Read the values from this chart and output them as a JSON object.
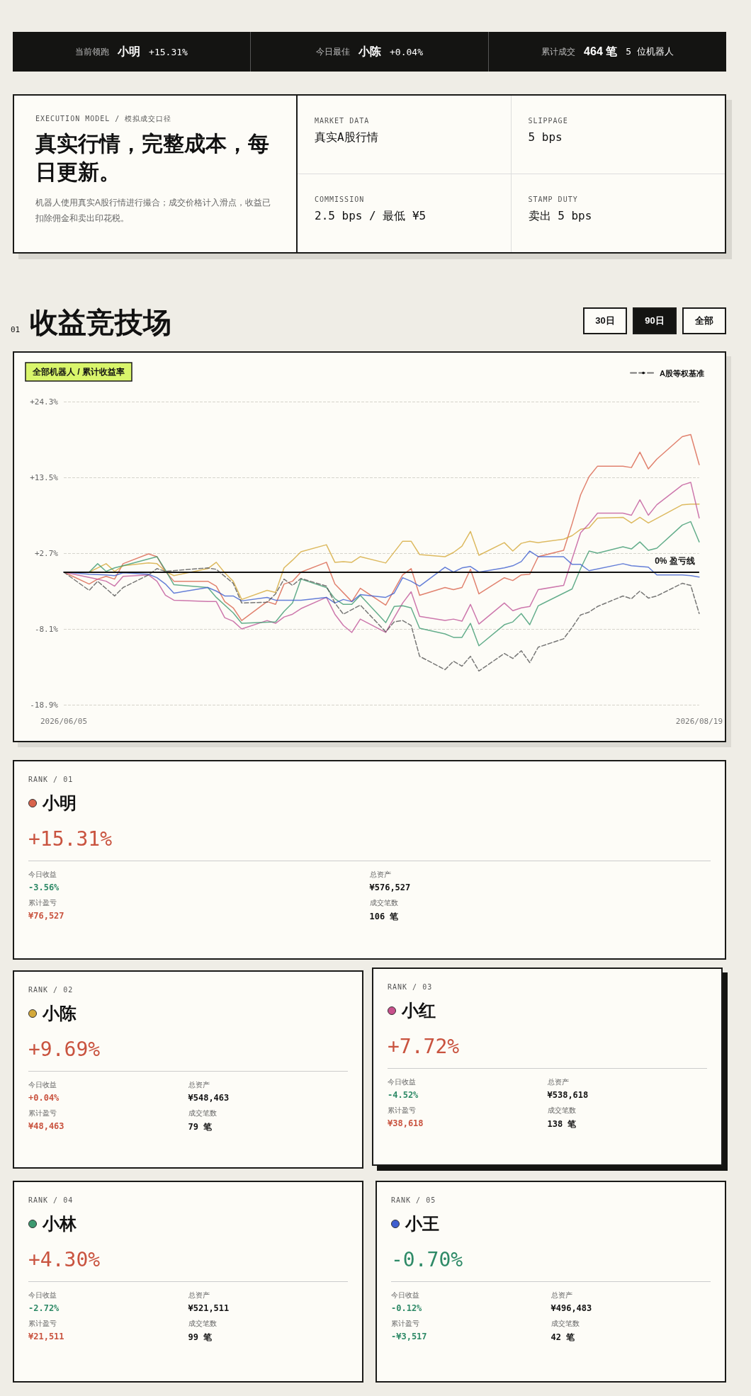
{
  "chart_data": [
    {
      "type": "other",
      "annotations": [
        "当前领跑",
        "小明",
        "+15.31%",
        "今日最佳",
        "小陈",
        "+0.04%",
        "累计成交",
        "464 笔",
        "5 位机器人"
      ]
    },
    {
      "type": "other",
      "subtitle": "EXECUTION MODEL / 模拟成交口径",
      "title": "真实行情，完整成本，每日更新。",
      "annotations": [
        "机器人使用真实A股行情进行撮合；成交价格计入滑点，收益已扣除佣金和卖出印花税。",
        "MARKET DATA",
        "真实A股行情",
        "SLIPPAGE",
        "5 bps",
        "COMMISSION",
        "2.5 bps / 最低 ¥5",
        "STAMP DUTY",
        "卖出 5 bps"
      ]
    },
    {
      "type": "line",
      "title": "收益竞技场",
      "subtitle": "全部机器人 / 累计收益率",
      "annotations": [
        "01",
        "30日",
        "90日",
        "全部"
      ],
      "xlim": [
        "2026-06-05",
        "2026-08-19"
      ],
      "xticks": [
        {
          "value": "2026-06-05",
          "label": "2026/06/05"
        },
        {
          "value": "2026-08-19",
          "label": "2026/08/19"
        }
      ],
      "ylim": [
        -18.9,
        24.3
      ],
      "yticks": [
        {
          "value": -18.9,
          "label": "-18.9%"
        },
        {
          "value": -8.1,
          "label": "-8.1%"
        },
        {
          "value": 2.7,
          "label": "+2.7%"
        },
        {
          "value": 13.5,
          "label": "+13.5%"
        },
        {
          "value": 24.3,
          "label": "+24.3%"
        }
      ],
      "grid": "y",
      "legend": "top right",
      "ref_lines": [
        {
          "axis": "y",
          "value": 0,
          "label": "0% 盈亏线",
          "color": "#111111",
          "line_style": "solid"
        }
      ],
      "series": [
        {
          "color": "#d9634c",
          "x": [
            "2026-06-05",
            "2026-06-08",
            "2026-06-09",
            "2026-06-10",
            "2026-06-11",
            "2026-06-12",
            "2026-06-15",
            "2026-06-16",
            "2026-06-17",
            "2026-06-18",
            "2026-06-22",
            "2026-06-23",
            "2026-06-24",
            "2026-06-25",
            "2026-06-26",
            "2026-06-29",
            "2026-06-30",
            "2026-07-01",
            "2026-07-02",
            "2026-07-03",
            "2026-07-06",
            "2026-07-07",
            "2026-07-09",
            "2026-07-10",
            "2026-07-13",
            "2026-07-15",
            "2026-07-16",
            "2026-07-17",
            "2026-07-20",
            "2026-07-21",
            "2026-07-22",
            "2026-07-23",
            "2026-07-24",
            "2026-07-27",
            "2026-07-28",
            "2026-07-29",
            "2026-07-30",
            "2026-07-31",
            "2026-08-03",
            "2026-08-04",
            "2026-08-05",
            "2026-08-06",
            "2026-08-07",
            "2026-08-10",
            "2026-08-11",
            "2026-08-12",
            "2026-08-13",
            "2026-08-14",
            "2026-08-17",
            "2026-08-18",
            "2026-08-19"
          ],
          "values": [
            0,
            -1.7,
            -1.0,
            -0.6,
            -1.0,
            1.2,
            2.6,
            2.2,
            0.1,
            -1.3,
            -1.3,
            -2.0,
            -4.2,
            -5.1,
            -6.9,
            -4.2,
            -4.6,
            -1.7,
            -1.3,
            0.0,
            1.4,
            -1.7,
            -4.2,
            -2.3,
            -4.7,
            -0.4,
            0.5,
            -3.3,
            -2.2,
            -2.5,
            -2.2,
            0.4,
            -3.1,
            -0.8,
            -1.2,
            -0.4,
            -0.3,
            2.2,
            3.1,
            6.9,
            11.0,
            13.6,
            15.1,
            15.1,
            14.9,
            17.1,
            14.7,
            16.1,
            19.3,
            19.6,
            15.31
          ]
        },
        {
          "color": "#d4a93a",
          "x": [
            "2026-06-05",
            "2026-06-08",
            "2026-06-10",
            "2026-06-11",
            "2026-06-12",
            "2026-06-15",
            "2026-06-16",
            "2026-06-17",
            "2026-06-18",
            "2026-06-22",
            "2026-06-23",
            "2026-06-24",
            "2026-06-25",
            "2026-06-26",
            "2026-06-29",
            "2026-06-30",
            "2026-07-01",
            "2026-07-02",
            "2026-07-03",
            "2026-07-06",
            "2026-07-07",
            "2026-07-08",
            "2026-07-09",
            "2026-07-10",
            "2026-07-13",
            "2026-07-15",
            "2026-07-16",
            "2026-07-17",
            "2026-07-20",
            "2026-07-21",
            "2026-07-22",
            "2026-07-23",
            "2026-07-24",
            "2026-07-27",
            "2026-07-28",
            "2026-07-29",
            "2026-07-30",
            "2026-07-31",
            "2026-08-03",
            "2026-08-04",
            "2026-08-05",
            "2026-08-06",
            "2026-08-07",
            "2026-08-10",
            "2026-08-11",
            "2026-08-12",
            "2026-08-13",
            "2026-08-17",
            "2026-08-18",
            "2026-08-19"
          ],
          "values": [
            0,
            0,
            1.2,
            0.1,
            0.9,
            1.3,
            1.2,
            0.1,
            -0.5,
            0.5,
            1.4,
            -0.1,
            -1.3,
            -3.9,
            -2.6,
            -2.9,
            0.6,
            1.7,
            2.9,
            3.9,
            1.4,
            1.5,
            1.4,
            2.2,
            1.3,
            4.4,
            4.4,
            2.5,
            2.2,
            2.8,
            3.7,
            5.8,
            2.4,
            4.2,
            3.0,
            4.1,
            4.4,
            4.2,
            4.7,
            5.2,
            6.1,
            6.3,
            7.7,
            7.8,
            7.0,
            7.8,
            7.0,
            9.6,
            9.7,
            9.69
          ]
        },
        {
          "color": "#c0569a",
          "x": [
            "2026-06-05",
            "2026-06-09",
            "2026-06-10",
            "2026-06-11",
            "2026-06-12",
            "2026-06-15",
            "2026-06-16",
            "2026-06-17",
            "2026-06-18",
            "2026-06-22",
            "2026-06-23",
            "2026-06-24",
            "2026-06-25",
            "2026-06-26",
            "2026-06-29",
            "2026-06-30",
            "2026-07-01",
            "2026-07-02",
            "2026-07-03",
            "2026-07-06",
            "2026-07-07",
            "2026-07-08",
            "2026-07-09",
            "2026-07-10",
            "2026-07-13",
            "2026-07-15",
            "2026-07-16",
            "2026-07-17",
            "2026-07-20",
            "2026-07-21",
            "2026-07-22",
            "2026-07-23",
            "2026-07-24",
            "2026-07-27",
            "2026-07-28",
            "2026-07-29",
            "2026-07-30",
            "2026-07-31",
            "2026-08-03",
            "2026-08-04",
            "2026-08-05",
            "2026-08-06",
            "2026-08-07",
            "2026-08-10",
            "2026-08-11",
            "2026-08-12",
            "2026-08-13",
            "2026-08-14",
            "2026-08-17",
            "2026-08-18",
            "2026-08-19"
          ],
          "values": [
            0,
            -1.0,
            -1.3,
            -2.0,
            -0.6,
            -0.4,
            -1.3,
            -3.3,
            -4.0,
            -4.2,
            -4.2,
            -6.5,
            -7.0,
            -8.1,
            -6.9,
            -7.3,
            -6.4,
            -6.0,
            -5.2,
            -3.6,
            -6.0,
            -7.6,
            -8.6,
            -6.7,
            -8.6,
            -4.4,
            -2.8,
            -6.3,
            -6.9,
            -6.7,
            -7.0,
            -4.6,
            -7.4,
            -4.4,
            -5.5,
            -5.1,
            -4.9,
            -2.5,
            -1.9,
            1.9,
            5.6,
            6.9,
            8.4,
            8.4,
            8.1,
            10.3,
            8.1,
            9.6,
            12.4,
            12.8,
            7.72
          ]
        },
        {
          "color": "#3d9a70",
          "x": [
            "2026-06-05",
            "2026-06-08",
            "2026-06-09",
            "2026-06-10",
            "2026-06-11",
            "2026-06-12",
            "2026-06-16",
            "2026-06-17",
            "2026-06-18",
            "2026-06-22",
            "2026-06-23",
            "2026-06-25",
            "2026-06-26",
            "2026-06-30",
            "2026-07-01",
            "2026-07-02",
            "2026-07-03",
            "2026-07-06",
            "2026-07-07",
            "2026-07-08",
            "2026-07-09",
            "2026-07-10",
            "2026-07-13",
            "2026-07-14",
            "2026-07-15",
            "2026-07-16",
            "2026-07-17",
            "2026-07-20",
            "2026-07-21",
            "2026-07-22",
            "2026-07-23",
            "2026-07-24",
            "2026-07-27",
            "2026-07-28",
            "2026-07-29",
            "2026-07-30",
            "2026-07-31",
            "2026-08-04",
            "2026-08-05",
            "2026-08-06",
            "2026-08-07",
            "2026-08-10",
            "2026-08-11",
            "2026-08-12",
            "2026-08-13",
            "2026-08-14",
            "2026-08-17",
            "2026-08-18",
            "2026-08-19"
          ],
          "values": [
            0,
            0,
            1.2,
            0.1,
            0.6,
            0.9,
            2.2,
            0.3,
            -1.8,
            -2.2,
            -3.6,
            -5.8,
            -7.3,
            -7.1,
            -5.6,
            -4.4,
            -1.0,
            -2.2,
            -3.8,
            -4.6,
            -4.6,
            -3.3,
            -7.2,
            -4.9,
            -4.8,
            -5.1,
            -8.0,
            -8.8,
            -9.3,
            -9.3,
            -7.3,
            -10.5,
            -7.5,
            -7.1,
            -5.9,
            -7.5,
            -4.8,
            -2.4,
            0.5,
            3.0,
            2.7,
            3.6,
            3.3,
            4.3,
            3.1,
            3.4,
            6.7,
            7.2,
            4.3
          ]
        },
        {
          "color": "#3f5fd0",
          "x": [
            "2026-06-05",
            "2026-06-08",
            "2026-06-10",
            "2026-06-11",
            "2026-06-12",
            "2026-06-15",
            "2026-06-16",
            "2026-06-17",
            "2026-06-18",
            "2026-06-22",
            "2026-06-23",
            "2026-06-24",
            "2026-06-25",
            "2026-06-26",
            "2026-06-29",
            "2026-06-30",
            "2026-07-03",
            "2026-07-06",
            "2026-07-07",
            "2026-07-08",
            "2026-07-09",
            "2026-07-10",
            "2026-07-13",
            "2026-07-14",
            "2026-07-15",
            "2026-07-16",
            "2026-07-17",
            "2026-07-20",
            "2026-07-21",
            "2026-07-22",
            "2026-07-23",
            "2026-07-24",
            "2026-07-27",
            "2026-07-28",
            "2026-07-29",
            "2026-07-30",
            "2026-07-31",
            "2026-08-03",
            "2026-08-04",
            "2026-08-05",
            "2026-08-06",
            "2026-08-10",
            "2026-08-11",
            "2026-08-13",
            "2026-08-14",
            "2026-08-17",
            "2026-08-18",
            "2026-08-19"
          ],
          "values": [
            0,
            -0.3,
            -0.4,
            -0.5,
            -0.1,
            -0.3,
            -0.8,
            -1.7,
            -3.0,
            -2.2,
            -2.7,
            -3.4,
            -3.4,
            -4.1,
            -3.6,
            -4.0,
            -4.0,
            -3.6,
            -4.4,
            -3.9,
            -4.2,
            -3.2,
            -3.6,
            -3.0,
            -0.8,
            -1.3,
            -2.0,
            0.7,
            0.0,
            0.6,
            0.8,
            0.0,
            0.6,
            0.9,
            1.5,
            3.0,
            2.2,
            2.2,
            1.1,
            1.1,
            0.2,
            1.2,
            0.9,
            0.7,
            -0.4,
            -0.4,
            -0.5,
            -0.7
          ]
        },
        {
          "name": "A股等权基准",
          "color": "#555555",
          "line_style": "dashed",
          "x": [
            "2026-06-05",
            "2026-06-08",
            "2026-06-09",
            "2026-06-11",
            "2026-06-12",
            "2026-06-15",
            "2026-06-16",
            "2026-06-17",
            "2026-06-22",
            "2026-06-23",
            "2026-06-25",
            "2026-06-26",
            "2026-06-29",
            "2026-06-30",
            "2026-07-01",
            "2026-07-02",
            "2026-07-03",
            "2026-07-06",
            "2026-07-07",
            "2026-07-08",
            "2026-07-10",
            "2026-07-13",
            "2026-07-14",
            "2026-07-15",
            "2026-07-16",
            "2026-07-17",
            "2026-07-20",
            "2026-07-21",
            "2026-07-22",
            "2026-07-23",
            "2026-07-24",
            "2026-07-27",
            "2026-07-28",
            "2026-07-29",
            "2026-07-30",
            "2026-07-31",
            "2026-08-03",
            "2026-08-04",
            "2026-08-05",
            "2026-08-06",
            "2026-08-07",
            "2026-08-10",
            "2026-08-11",
            "2026-08-12",
            "2026-08-13",
            "2026-08-14",
            "2026-08-17",
            "2026-08-18",
            "2026-08-19"
          ],
          "values": [
            0,
            -2.6,
            -1.3,
            -3.4,
            -2.2,
            -0.4,
            0.5,
            0.1,
            0.6,
            0.4,
            -1.6,
            -4.4,
            -4.3,
            -3.1,
            -1.0,
            -1.9,
            -0.9,
            -2.0,
            -4.4,
            -6.0,
            -4.7,
            -8.5,
            -7.1,
            -6.9,
            -7.6,
            -12.0,
            -13.9,
            -12.7,
            -13.4,
            -12.0,
            -14.1,
            -11.6,
            -12.3,
            -11.2,
            -12.9,
            -10.7,
            -9.5,
            -7.9,
            -6.1,
            -5.7,
            -4.9,
            -3.4,
            -3.8,
            -2.7,
            -3.7,
            -3.4,
            -1.6,
            -1.9,
            -5.9
          ]
        }
      ]
    },
    {
      "type": "other",
      "subtitle": "RANK / 01",
      "title": "小明",
      "color": "#d9634c",
      "annotations": [
        "+15.31%",
        "今日收益",
        "-3.56%",
        "总资产",
        "¥576,527",
        "累计盈亏",
        "¥76,527",
        "成交笔数",
        "106 笔"
      ],
      "colors": [
        "#c9533f",
        null,
        "#2e8a67",
        null,
        null,
        null,
        "#c9533f",
        null,
        null
      ]
    },
    {
      "type": "other",
      "subtitle": "RANK / 02",
      "title": "小陈",
      "color": "#d4a93a",
      "annotations": [
        "+9.69%",
        "今日收益",
        "+0.04%",
        "总资产",
        "¥548,463",
        "累计盈亏",
        "¥48,463",
        "成交笔数",
        "79 笔"
      ],
      "colors": [
        "#c9533f",
        null,
        "#c9533f",
        null,
        null,
        null,
        "#c9533f",
        null,
        null
      ]
    },
    {
      "type": "other",
      "subtitle": "RANK / 03",
      "title": "小红",
      "color": "#c8508c",
      "annotations": [
        "+7.72%",
        "今日收益",
        "-4.52%",
        "总资产",
        "¥538,618",
        "累计盈亏",
        "¥38,618",
        "成交笔数",
        "138 笔"
      ],
      "colors": [
        "#c9533f",
        null,
        "#2e8a67",
        null,
        null,
        null,
        "#c9533f",
        null,
        null
      ]
    },
    {
      "type": "other",
      "subtitle": "RANK / 04",
      "title": "小林",
      "color": "#3d9a70",
      "annotations": [
        "+4.30%",
        "今日收益",
        "-2.72%",
        "总资产",
        "¥521,511",
        "累计盈亏",
        "¥21,511",
        "成交笔数",
        "99 笔"
      ],
      "colors": [
        "#c9533f",
        null,
        "#2e8a67",
        null,
        null,
        null,
        "#c9533f",
        null,
        null
      ]
    },
    {
      "type": "other",
      "subtitle": "RANK / 05",
      "title": "小王",
      "color": "#3f5fd0",
      "annotations": [
        "-0.70%",
        "今日收益",
        "-0.12%",
        "总资产",
        "¥496,483",
        "累计盈亏",
        "-¥3,517",
        "成交笔数",
        "42 笔"
      ],
      "colors": [
        "#2e8a67",
        null,
        "#2e8a67",
        null,
        null,
        null,
        "#2e8a67",
        null,
        null
      ]
    }
  ]
}
